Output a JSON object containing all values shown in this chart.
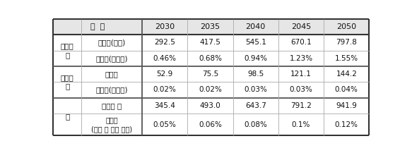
{
  "columns": [
    "구  분",
    "2030",
    "2035",
    "2040",
    "2045",
    "2050"
  ],
  "section1_header": "석유화\n학",
  "section2_header": "발전부\n문",
  "section3_header": "계",
  "rows": [
    {
      "sub_label": "감축량(직접)",
      "values": [
        "292.5",
        "417.5",
        "545.1",
        "670.1",
        "797.8"
      ]
    },
    {
      "sub_label": "감축율(업종내)",
      "values": [
        "0.46%",
        "0.68%",
        "0.94%",
        "1.23%",
        "1.55%"
      ]
    },
    {
      "sub_label": "감축량",
      "values": [
        "52.9",
        "75.5",
        "98.5",
        "121.1",
        "144.2"
      ]
    },
    {
      "sub_label": "감축율(부문내)",
      "values": [
        "0.02%",
        "0.02%",
        "0.03%",
        "0.03%",
        "0.04%"
      ]
    },
    {
      "sub_label": "감축량 계",
      "values": [
        "345.4",
        "493.0",
        "643.7",
        "791.2",
        "941.9"
      ]
    },
    {
      "sub_label": "감축율\n(국가 총 배출 대비)",
      "values": [
        "0.05%",
        "0.06%",
        "0.08%",
        "0.1%",
        "0.12%"
      ]
    }
  ],
  "header_bg": "#e8e8e8",
  "body_bg": "#ffffff",
  "line_color_thick": "#555555",
  "line_color_thin": "#aaaaaa",
  "text_color": "#111111"
}
